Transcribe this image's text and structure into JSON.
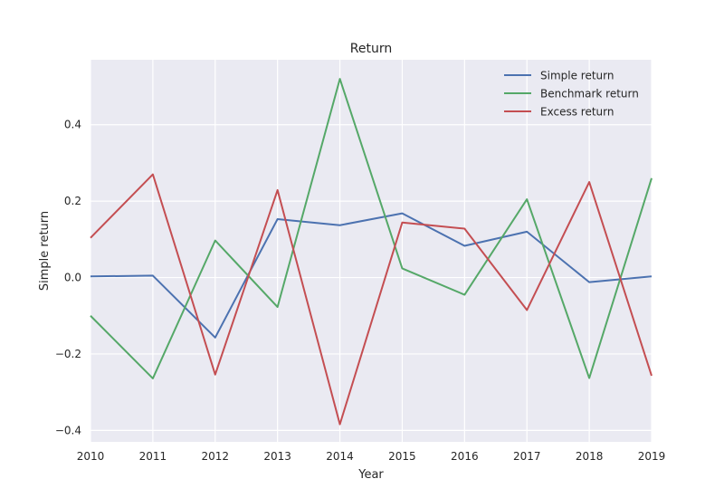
{
  "chart_data": {
    "type": "line",
    "title": "Return",
    "xlabel": "Year",
    "ylabel": "Simple return",
    "x": [
      2010,
      2011,
      2012,
      2013,
      2014,
      2015,
      2016,
      2017,
      2018,
      2019
    ],
    "xlim": [
      2010,
      2019
    ],
    "ylim": [
      -0.43,
      0.57
    ],
    "yticks": [
      -0.4,
      -0.2,
      0.0,
      0.2,
      0.4
    ],
    "ytick_labels": [
      "−0.4",
      "−0.2",
      "0.0",
      "0.2",
      "0.4"
    ],
    "xtick_labels": [
      "2010",
      "2011",
      "2012",
      "2013",
      "2014",
      "2015",
      "2016",
      "2017",
      "2018",
      "2019"
    ],
    "grid": true,
    "legend_position": "top-right",
    "background": "#eaeaf2",
    "series": [
      {
        "name": "Simple return",
        "color": "#4c72b0",
        "values": [
          0.003,
          0.005,
          -0.157,
          0.153,
          0.137,
          0.168,
          0.083,
          0.12,
          -0.012,
          0.003
        ]
      },
      {
        "name": "Benchmark return",
        "color": "#55a868",
        "values": [
          -0.1,
          -0.264,
          0.097,
          -0.077,
          0.52,
          0.024,
          -0.045,
          0.205,
          -0.263,
          0.26
        ]
      },
      {
        "name": "Excess return",
        "color": "#c44e52",
        "values": [
          0.104,
          0.27,
          -0.254,
          0.229,
          -0.384,
          0.144,
          0.128,
          -0.085,
          0.25,
          -0.257
        ]
      }
    ]
  }
}
